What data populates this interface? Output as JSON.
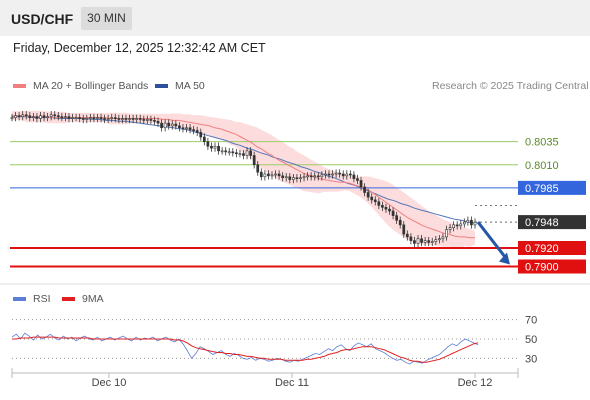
{
  "header": {
    "pair": "USD/CHF",
    "timeframe": "30 MIN",
    "datetime": "Friday, December 12, 2025 12:32:42 AM CET"
  },
  "legend": {
    "ma20_label": "MA 20 + Bollinger Bands",
    "ma50_label": "MA 50",
    "credit": "Research © 2025 Trading Central",
    "rsi_label": "RSI",
    "ma9_label": "9MA"
  },
  "colors": {
    "ma20": "#f08080",
    "bollinger_fill": "#fbd6d6",
    "ma50": "#5577bb",
    "resistance": "#9ccc65",
    "pivot": "#3366dd",
    "support": "#e01010",
    "current": "#333333",
    "arrow": "#2457a6",
    "rsi": "#5b7fd6",
    "rsi_ma": "#e02020"
  },
  "chart_data": [
    {
      "type": "candlestick",
      "x_ticks": [
        "Dec 10",
        "Dec 11",
        "Dec 12"
      ],
      "ylim": [
        0.788,
        0.808
      ],
      "levels": [
        {
          "label": "0.8035",
          "value": 0.8035,
          "kind": "resistance"
        },
        {
          "label": "0.8010",
          "value": 0.801,
          "kind": "resistance"
        },
        {
          "label": "0.7985",
          "value": 0.7985,
          "kind": "pivot"
        },
        {
          "label": "0.7948",
          "value": 0.7948,
          "kind": "current"
        },
        {
          "label": "0.7920",
          "value": 0.792,
          "kind": "support"
        },
        {
          "label": "0.7900",
          "value": 0.79,
          "kind": "support"
        }
      ],
      "close": [
        0.8061,
        0.8063,
        0.8062,
        0.8064,
        0.8063,
        0.8061,
        0.8062,
        0.806,
        0.8063,
        0.8061,
        0.8062,
        0.8064,
        0.8063,
        0.8062,
        0.8061,
        0.8062,
        0.806,
        0.8061,
        0.8061,
        0.806,
        0.8059,
        0.806,
        0.8061,
        0.806,
        0.8061,
        0.806,
        0.8059,
        0.806,
        0.8061,
        0.806,
        0.8059,
        0.806,
        0.8059,
        0.806,
        0.8059,
        0.806,
        0.8059,
        0.8058,
        0.8059,
        0.8058,
        0.8057,
        0.8055,
        0.805,
        0.8055,
        0.8052,
        0.8054,
        0.8052,
        0.805,
        0.8049,
        0.805,
        0.8048,
        0.8047,
        0.8045,
        0.804,
        0.8035,
        0.803,
        0.8028,
        0.803,
        0.8025,
        0.8025,
        0.8024,
        0.8024,
        0.8023,
        0.8022,
        0.8022,
        0.802,
        0.8025,
        0.802,
        0.801,
        0.8002,
        0.7997,
        0.8,
        0.7998,
        0.7999,
        0.8,
        0.7998,
        0.7996,
        0.7997,
        0.7994,
        0.7996,
        0.7995,
        0.7996,
        0.7997,
        0.7998,
        0.7997,
        0.7998,
        0.7997,
        0.7999,
        0.8,
        0.7999,
        0.8,
        0.8001,
        0.8,
        0.7998,
        0.8,
        0.7999,
        0.7995,
        0.7993,
        0.7986,
        0.798,
        0.7975,
        0.7972,
        0.797,
        0.7966,
        0.7964,
        0.7962,
        0.796,
        0.7955,
        0.795,
        0.7945,
        0.7935,
        0.7932,
        0.7928,
        0.7925,
        0.793,
        0.7926,
        0.7928,
        0.7926,
        0.7927,
        0.7929,
        0.793,
        0.7932,
        0.794,
        0.7942,
        0.7945,
        0.7944,
        0.7946,
        0.7948,
        0.795,
        0.7945,
        0.7948
      ],
      "ma20": [
        0.8063,
        0.8063,
        0.8063,
        0.8062,
        0.8062,
        0.8062,
        0.8062,
        0.8061,
        0.8061,
        0.8061,
        0.8061,
        0.8061,
        0.8061,
        0.8061,
        0.8061,
        0.8061,
        0.8061,
        0.8061,
        0.8061,
        0.806,
        0.806,
        0.806,
        0.806,
        0.806,
        0.806,
        0.806,
        0.806,
        0.806,
        0.806,
        0.8059,
        0.8059,
        0.8058,
        0.8058,
        0.8057,
        0.8056,
        0.8055,
        0.8054,
        0.8053,
        0.8052,
        0.805,
        0.8049,
        0.8047,
        0.8045,
        0.8043,
        0.804,
        0.8037,
        0.8034,
        0.803,
        0.8027,
        0.8023,
        0.802,
        0.8016,
        0.8013,
        0.801,
        0.8007,
        0.8004,
        0.8001,
        0.7999,
        0.7997,
        0.7995,
        0.7994,
        0.7993,
        0.7992,
        0.7991,
        0.7991,
        0.799,
        0.7988,
        0.7986,
        0.7984,
        0.7981,
        0.7977,
        0.7973,
        0.7969,
        0.7965,
        0.7961,
        0.7957,
        0.7953,
        0.795,
        0.7947,
        0.7944,
        0.7942,
        0.794,
        0.7938,
        0.7936,
        0.7935,
        0.7933,
        0.7932,
        0.7932,
        0.7931,
        0.7931
      ],
      "ma50": [
        0.8062,
        0.8062,
        0.8062,
        0.8061,
        0.8061,
        0.8061,
        0.8061,
        0.806,
        0.806,
        0.806,
        0.806,
        0.806,
        0.8059,
        0.8059,
        0.8058,
        0.8058,
        0.8057,
        0.8057,
        0.8056,
        0.8055,
        0.8054,
        0.8053,
        0.8052,
        0.8051,
        0.805,
        0.8049,
        0.8048,
        0.8046,
        0.8044,
        0.8042,
        0.804,
        0.8038,
        0.8036,
        0.8033,
        0.8031,
        0.8028,
        0.8026,
        0.8023,
        0.8021,
        0.8018,
        0.8016,
        0.8013,
        0.8011,
        0.8008,
        0.8006,
        0.8003,
        0.8001,
        0.7998,
        0.7996,
        0.7993,
        0.799,
        0.7988,
        0.7985,
        0.7982,
        0.7979,
        0.7976,
        0.7973,
        0.7971,
        0.7968,
        0.7966,
        0.7963,
        0.7961,
        0.7959,
        0.7957,
        0.7955,
        0.7953,
        0.7951,
        0.795,
        0.7948,
        0.7947
      ]
    },
    {
      "type": "line",
      "ylim": [
        20,
        80
      ],
      "y_ticks": [
        70,
        50,
        30
      ],
      "series": [
        {
          "name": "RSI",
          "values": [
            52,
            55,
            50,
            56,
            53,
            49,
            54,
            50,
            52,
            55,
            51,
            49,
            53,
            50,
            52,
            48,
            51,
            53,
            50,
            49,
            52,
            48,
            50,
            52,
            49,
            51,
            53,
            50,
            48,
            52,
            49,
            51,
            50,
            52,
            48,
            50,
            52,
            49,
            47,
            50,
            45,
            38,
            30,
            35,
            42,
            40,
            37,
            34,
            36,
            38,
            34,
            32,
            35,
            33,
            30,
            29,
            31,
            28,
            30,
            29,
            27,
            28,
            30,
            29,
            27,
            26,
            28,
            27,
            29,
            31,
            33,
            35,
            34,
            37,
            40,
            38,
            42,
            44,
            40,
            38,
            43,
            46,
            44,
            42,
            45,
            40,
            38,
            36,
            33,
            30,
            28,
            29,
            26,
            24,
            27,
            26,
            25,
            28,
            30,
            32,
            34,
            38,
            42,
            45,
            43,
            47,
            50,
            48,
            46,
            44
          ],
          "color": "#5b7fd6"
        },
        {
          "name": "9MA",
          "values": [
            50,
            50,
            51,
            51,
            51,
            52,
            52,
            52,
            52,
            52,
            52,
            51,
            51,
            51,
            51,
            51,
            51,
            51,
            51,
            50,
            50,
            50,
            50,
            50,
            50,
            50,
            50,
            50,
            50,
            50,
            50,
            50,
            50,
            50,
            50,
            50,
            50,
            50,
            49,
            49,
            48,
            46,
            43,
            41,
            40,
            39,
            38,
            37,
            36,
            36,
            35,
            35,
            34,
            34,
            33,
            32,
            32,
            31,
            30,
            30,
            29,
            29,
            29,
            29,
            28,
            28,
            28,
            28,
            28,
            29,
            29,
            30,
            31,
            32,
            34,
            35,
            36,
            38,
            39,
            39,
            40,
            41,
            42,
            42,
            42,
            41,
            40,
            39,
            37,
            35,
            33,
            31,
            30,
            28,
            27,
            27,
            26,
            26,
            27,
            28,
            29,
            31,
            33,
            35,
            37,
            39,
            41,
            43,
            45,
            46
          ],
          "color": "#e02020"
        }
      ]
    }
  ]
}
